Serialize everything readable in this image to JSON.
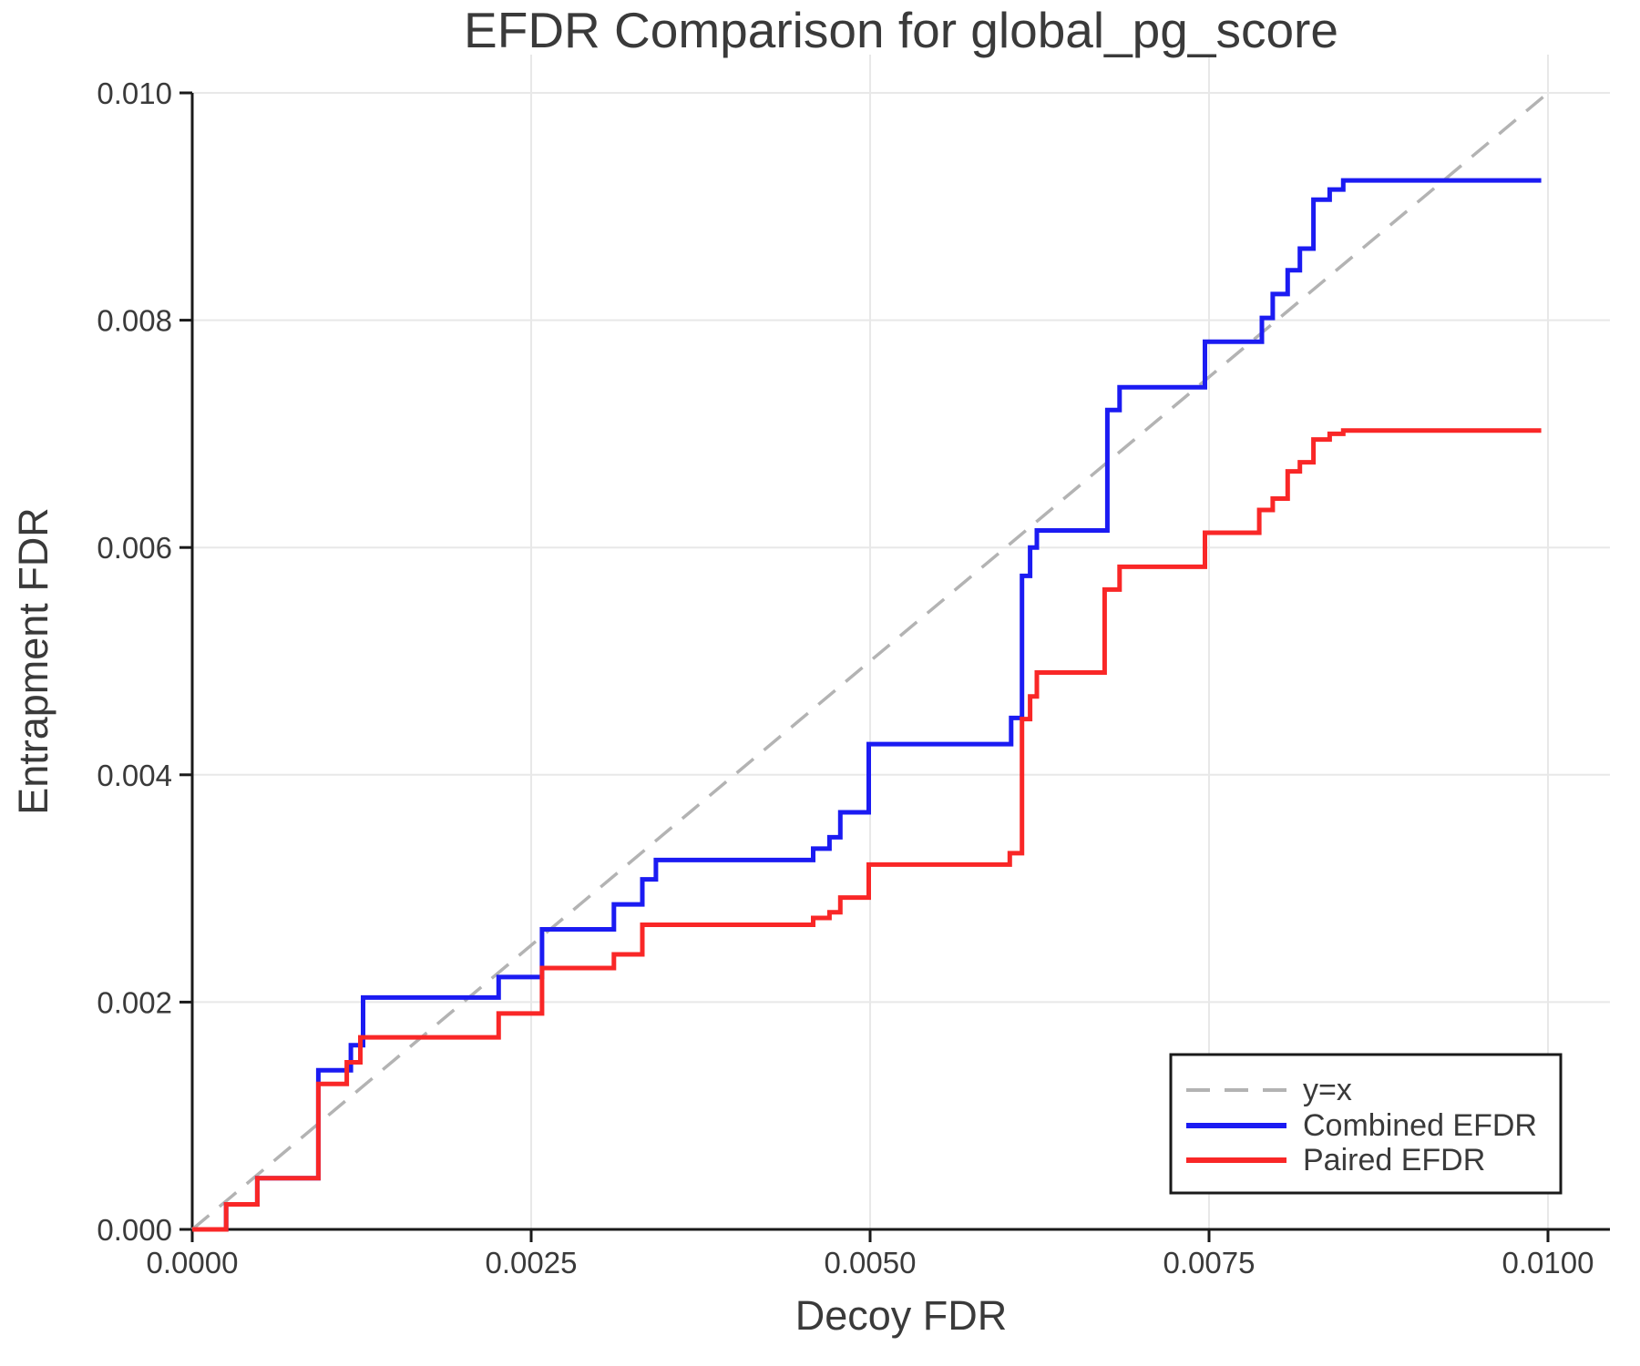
{
  "title": "EFDR Comparison for global_pg_score",
  "axes": {
    "xlabel": "Decoy FDR",
    "ylabel": "Entrapment FDR",
    "x_ticks": [
      {
        "value": 0.0,
        "label": "0.0000"
      },
      {
        "value": 0.0025,
        "label": "0.0025"
      },
      {
        "value": 0.005,
        "label": "0.0050"
      },
      {
        "value": 0.0075,
        "label": "0.0075"
      },
      {
        "value": 0.01,
        "label": "0.0100"
      }
    ],
    "y_ticks": [
      {
        "value": 0.0,
        "label": "0.000"
      },
      {
        "value": 0.002,
        "label": "0.002"
      },
      {
        "value": 0.004,
        "label": "0.004"
      },
      {
        "value": 0.006,
        "label": "0.006"
      },
      {
        "value": 0.008,
        "label": "0.008"
      },
      {
        "value": 0.01,
        "label": "0.010"
      }
    ]
  },
  "colors": {
    "combined": "#1b1bf2",
    "paired": "#f92727",
    "reference": "#b3b3b3",
    "grid": "#e8e8e8",
    "spine": "#1a1a1a",
    "text": "#3a3a3a"
  },
  "legend": {
    "items": [
      {
        "label": "y=x",
        "style": "dashed",
        "color": "#b3b3b3"
      },
      {
        "label": "Combined EFDR",
        "style": "solid",
        "color": "#1b1bf2"
      },
      {
        "label": "Paired EFDR",
        "style": "solid",
        "color": "#f92727"
      }
    ]
  },
  "chart_data": {
    "type": "line",
    "subtype": "step",
    "title": "EFDR Comparison for global_pg_score",
    "xlabel": "Decoy FDR",
    "ylabel": "Entrapment FDR",
    "xlim": [
      0.0,
      0.01045
    ],
    "ylim": [
      0.0,
      0.01034
    ],
    "grid": true,
    "legend_position": "lower right",
    "reference_line": {
      "name": "y=x",
      "from": [
        0.0,
        0.0
      ],
      "to": [
        0.01,
        0.01
      ]
    },
    "series": [
      {
        "name": "Combined EFDR",
        "color": "#1b1bf2",
        "start": [
          0.0,
          0.0
        ],
        "x_end": 0.00995,
        "steps": [
          [
            0.00025,
            0.00022
          ],
          [
            0.00048,
            0.00045
          ],
          [
            0.00093,
            0.0014
          ],
          [
            0.00117,
            0.00162
          ],
          [
            0.00126,
            0.00204
          ],
          [
            0.00226,
            0.00222
          ],
          [
            0.00258,
            0.00264
          ],
          [
            0.00311,
            0.00286
          ],
          [
            0.00332,
            0.00308
          ],
          [
            0.00342,
            0.00325
          ],
          [
            0.00458,
            0.00335
          ],
          [
            0.0047,
            0.00345
          ],
          [
            0.00478,
            0.00367
          ],
          [
            0.00499,
            0.00427
          ],
          [
            0.00604,
            0.0045
          ],
          [
            0.00612,
            0.00575
          ],
          [
            0.00618,
            0.006
          ],
          [
            0.00623,
            0.00615
          ],
          [
            0.00675,
            0.00721
          ],
          [
            0.00684,
            0.00741
          ],
          [
            0.00747,
            0.00781
          ],
          [
            0.00789,
            0.00802
          ],
          [
            0.00797,
            0.00823
          ],
          [
            0.00808,
            0.00844
          ],
          [
            0.00817,
            0.00863
          ],
          [
            0.00827,
            0.00906
          ],
          [
            0.00839,
            0.00915
          ],
          [
            0.00849,
            0.00923
          ]
        ]
      },
      {
        "name": "Paired EFDR",
        "color": "#f92727",
        "start": [
          0.0,
          0.0
        ],
        "x_end": 0.00995,
        "steps": [
          [
            0.00025,
            0.00022
          ],
          [
            0.00048,
            0.00045
          ],
          [
            0.00093,
            0.00128
          ],
          [
            0.00114,
            0.00147
          ],
          [
            0.00124,
            0.00169
          ],
          [
            0.00226,
            0.0019
          ],
          [
            0.00258,
            0.0023
          ],
          [
            0.00311,
            0.00242
          ],
          [
            0.00332,
            0.00268
          ],
          [
            0.00458,
            0.00274
          ],
          [
            0.0047,
            0.00279
          ],
          [
            0.00478,
            0.00292
          ],
          [
            0.00499,
            0.00321
          ],
          [
            0.00603,
            0.00331
          ],
          [
            0.00612,
            0.00449
          ],
          [
            0.00618,
            0.00469
          ],
          [
            0.00623,
            0.0049
          ],
          [
            0.00673,
            0.00563
          ],
          [
            0.00684,
            0.00583
          ],
          [
            0.00747,
            0.00613
          ],
          [
            0.00787,
            0.00633
          ],
          [
            0.00797,
            0.00643
          ],
          [
            0.00808,
            0.00667
          ],
          [
            0.00817,
            0.00675
          ],
          [
            0.00827,
            0.00695
          ],
          [
            0.00839,
            0.007
          ],
          [
            0.00849,
            0.00703
          ]
        ]
      }
    ]
  }
}
